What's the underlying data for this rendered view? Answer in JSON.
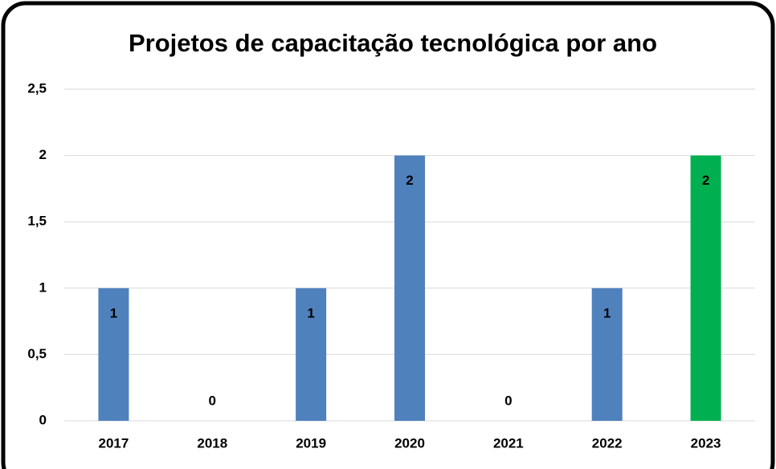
{
  "chart_data": {
    "type": "bar",
    "title": "Projetos de capacitação tecnológica por ano",
    "categories": [
      "2017",
      "2018",
      "2019",
      "2020",
      "2021",
      "2022",
      "2023"
    ],
    "values": [
      1,
      0,
      1,
      2,
      0,
      1,
      2
    ],
    "colors": [
      "#4f81bd",
      "#4f81bd",
      "#4f81bd",
      "#4f81bd",
      "#4f81bd",
      "#4f81bd",
      "#00b050"
    ],
    "ylim": [
      0,
      2.5
    ],
    "yticks": [
      0,
      {
        "value": 0.5,
        "label": "0,5"
      },
      1,
      {
        "value": 1.5,
        "label": "1,5"
      },
      2,
      {
        "value": 2.5,
        "label": "2,5"
      }
    ],
    "grid": true
  }
}
